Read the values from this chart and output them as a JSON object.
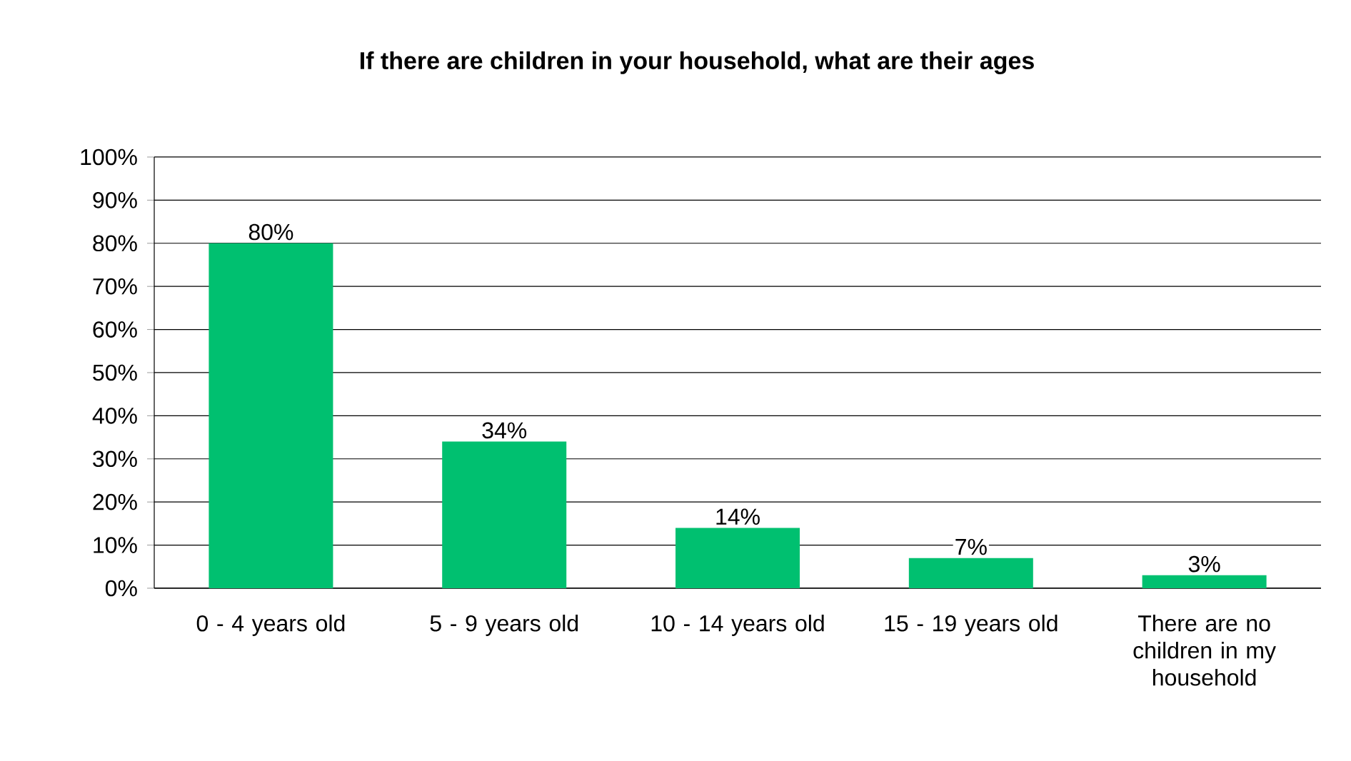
{
  "chart_data": {
    "type": "bar",
    "title": "If there are children in your household, what are their ages",
    "categories": [
      "0 - 4 years old",
      "5 - 9 years old",
      "10 - 14 years old",
      "15 - 19 years old",
      "There are no children in my household"
    ],
    "values": [
      80,
      34,
      14,
      7,
      3
    ],
    "value_labels": [
      "80%",
      "34%",
      "14%",
      "7%",
      "3%"
    ],
    "color": "#00c070",
    "ylim": [
      0,
      100
    ],
    "yticks": [
      {
        "value": 0,
        "label": "0%"
      },
      {
        "value": 10,
        "label": "10%"
      },
      {
        "value": 20,
        "label": "20%"
      },
      {
        "value": 30,
        "label": "30%"
      },
      {
        "value": 40,
        "label": "40%"
      },
      {
        "value": 50,
        "label": "50%"
      },
      {
        "value": 60,
        "label": "60%"
      },
      {
        "value": 70,
        "label": "70%"
      },
      {
        "value": 80,
        "label": "80%"
      },
      {
        "value": 90,
        "label": "90%"
      },
      {
        "value": 100,
        "label": "100%"
      }
    ],
    "grid": "y"
  }
}
